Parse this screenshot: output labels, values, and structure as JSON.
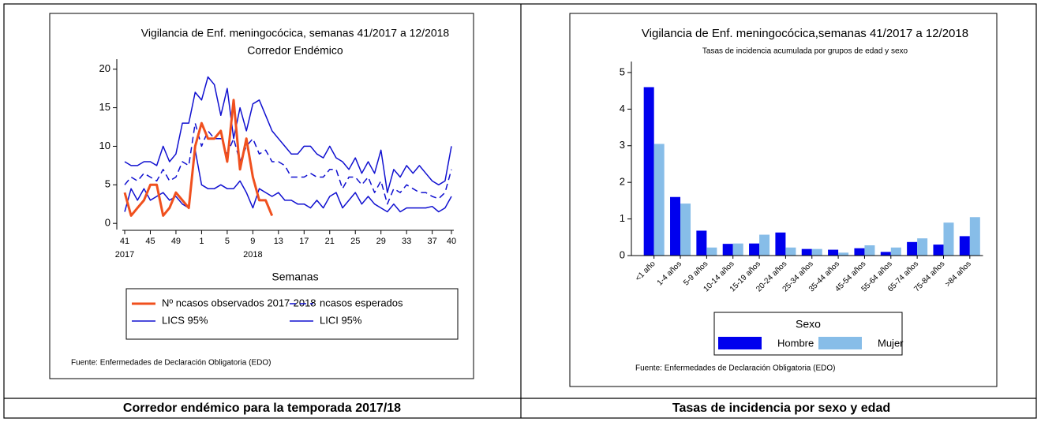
{
  "chart_data": [
    {
      "type": "line",
      "title": "Vigilancia de Enf. meningocócica, semanas 41/2017 a 12/2018",
      "subtitle": "Corredor Endémico",
      "x_label": "Semanas",
      "source": "Fuente: Enfermedades de Declaración Obligatoria (EDO)",
      "categories": [
        "41",
        null,
        null,
        null,
        "45",
        null,
        null,
        null,
        "49",
        null,
        null,
        null,
        "1",
        null,
        null,
        null,
        "5",
        null,
        null,
        null,
        "9",
        null,
        null,
        null,
        "13",
        null,
        null,
        null,
        "17",
        null,
        null,
        null,
        "21",
        null,
        null,
        null,
        "25",
        null,
        null,
        null,
        "29",
        null,
        null,
        null,
        "33",
        null,
        null,
        null,
        "37",
        null,
        null,
        "40"
      ],
      "category_years": [
        "2017",
        null,
        null,
        null,
        null,
        null,
        null,
        null,
        null,
        null,
        null,
        null,
        null,
        null,
        null,
        null,
        null,
        null,
        null,
        null,
        "2018",
        null,
        null,
        null,
        null,
        null,
        null,
        null,
        null,
        null,
        null,
        null,
        null,
        null,
        null,
        null,
        null,
        null,
        null,
        null,
        null,
        null,
        null,
        null,
        null,
        null,
        null,
        null,
        null,
        null,
        null,
        null
      ],
      "ylim": [
        -0.8,
        21.3
      ],
      "yticks": [
        0,
        5,
        10,
        15,
        20
      ],
      "series": [
        {
          "name": "Nº ncasos observados 2017-2018",
          "color": "#f0501e",
          "width": 3,
          "dashed": false,
          "values": [
            4,
            1,
            2,
            3,
            5,
            5,
            1,
            2,
            4,
            3,
            2,
            10,
            13,
            11,
            11,
            12,
            8,
            16,
            7,
            11,
            6,
            3,
            3,
            1,
            null,
            null,
            null,
            null,
            null,
            null,
            null,
            null,
            null,
            null,
            null,
            null,
            null,
            null,
            null,
            null,
            null,
            null,
            null,
            null,
            null,
            null,
            null,
            null,
            null,
            null,
            null,
            null
          ]
        },
        {
          "name": "ncasos esperados",
          "color": "#1010d0",
          "width": 1.5,
          "dashed": true,
          "values": [
            5,
            6,
            5.5,
            6.5,
            6,
            5.5,
            7,
            5.5,
            6,
            8,
            7.5,
            13,
            10,
            12,
            11,
            11,
            9,
            11,
            8,
            10,
            11,
            9,
            9.5,
            8,
            8,
            7.5,
            6,
            6,
            6,
            6.5,
            6,
            6,
            7,
            7,
            4.5,
            6,
            6,
            5,
            6,
            4,
            5.5,
            2.5,
            4.5,
            4,
            5,
            4.5,
            4,
            4,
            3.5,
            3.2,
            4,
            7
          ]
        },
        {
          "name": "LICS 95%",
          "color": "#1010d0",
          "width": 1.5,
          "dashed": false,
          "values": [
            8,
            7.5,
            7.5,
            8,
            8,
            7.5,
            10,
            8,
            9,
            13,
            13,
            17,
            16,
            19,
            18,
            14,
            17.5,
            11,
            15,
            12,
            15.5,
            16,
            14,
            12,
            11,
            10,
            9,
            9,
            10,
            10,
            9,
            8.5,
            10,
            8.5,
            8,
            7,
            8.5,
            6.5,
            8,
            6.5,
            9.5,
            4,
            7,
            6,
            7.5,
            6.5,
            7.5,
            6.5,
            5.5,
            5,
            5.5,
            10
          ]
        },
        {
          "name": "LICI 95%",
          "color": "#1010d0",
          "width": 1.5,
          "dashed": false,
          "values": [
            1.5,
            4.5,
            3,
            4.5,
            3,
            3.5,
            4,
            3,
            3.5,
            2.5,
            2,
            9.5,
            5,
            4.5,
            4.5,
            5,
            4.5,
            4.5,
            5.5,
            4,
            2,
            4.5,
            4,
            3.5,
            4,
            3,
            3,
            2.5,
            2.5,
            2,
            3,
            2,
            3.5,
            4,
            2,
            3,
            4,
            2.5,
            3.5,
            2.5,
            2,
            1.5,
            2.5,
            1.5,
            2,
            2,
            2,
            2,
            2.2,
            1.5,
            2,
            3.5
          ]
        }
      ]
    },
    {
      "type": "bar",
      "title": "Vigilancia de Enf. meningocócica,semanas 41/2017 a 12/2018",
      "subtitle": "Tasas de incidencia acumulada por grupos de edad y sexo",
      "legend_title": "Sexo",
      "source": "Fuente: Enfermedades de Declaración Obligatoria (EDO)",
      "categories": [
        "<1 año",
        "1-4 años",
        "5-9 años",
        "10-14 años",
        "15-19 años",
        "20-24 años",
        "25-34 años",
        "35-44 años",
        "45-54 años",
        "55-64 años",
        "65-74 años",
        "75-84 años",
        ">84 años"
      ],
      "ylim": [
        0,
        5.3
      ],
      "yticks": [
        0,
        1,
        2,
        3,
        4,
        5
      ],
      "series": [
        {
          "name": "Hombre",
          "color": "#0000ee",
          "values": [
            4.6,
            1.6,
            0.68,
            0.32,
            0.33,
            0.63,
            0.18,
            0.16,
            0.2,
            0.1,
            0.37,
            0.3,
            0.53
          ]
        },
        {
          "name": "Mujer",
          "color": "#87bde8",
          "values": [
            3.05,
            1.42,
            0.22,
            0.33,
            0.57,
            0.22,
            0.18,
            0.08,
            0.28,
            0.22,
            0.47,
            0.9,
            1.05
          ]
        }
      ]
    }
  ],
  "captions": [
    "Corredor endémico para la temporada 2017/18",
    "Tasas de incidencia por sexo y edad"
  ]
}
